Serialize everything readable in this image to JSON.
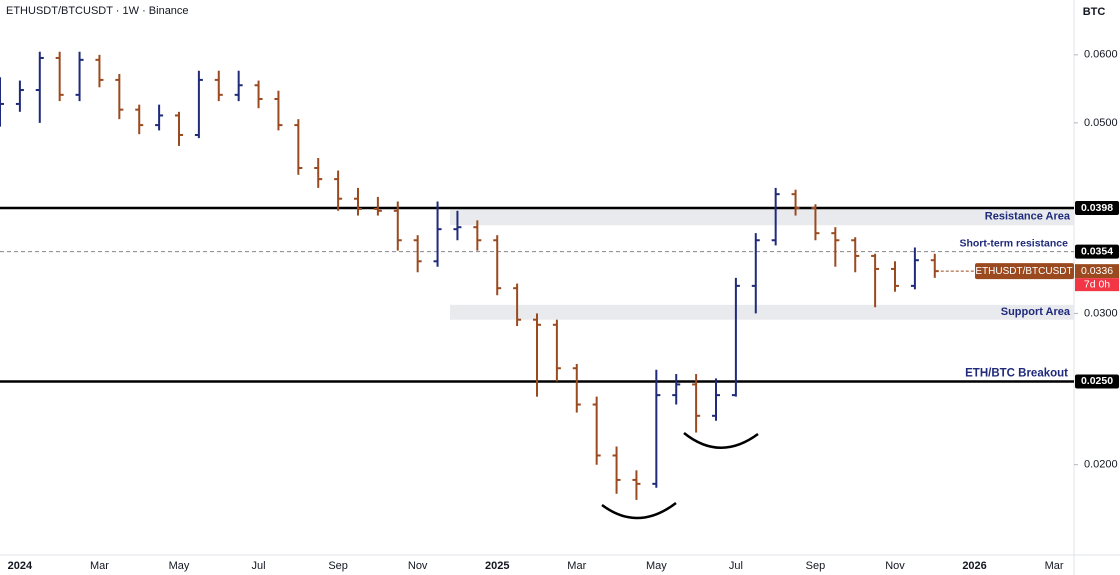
{
  "chart_data": {
    "type": "ohlc",
    "title": "ETHUSDT/BTCUSDT · 1W · Binance",
    "y_unit": "BTC",
    "log_scale": true,
    "up_color": "#1f2a7a",
    "down_color": "#9a4a1e",
    "xlim": [
      -0.5,
      26.5
    ],
    "xticks": [
      {
        "value": 0,
        "label": "2024"
      },
      {
        "value": 2,
        "label": "Mar"
      },
      {
        "value": 4,
        "label": "May"
      },
      {
        "value": 6,
        "label": "Jul"
      },
      {
        "value": 8,
        "label": "Sep"
      },
      {
        "value": 10,
        "label": "Nov"
      },
      {
        "value": 12,
        "label": "2025"
      },
      {
        "value": 14,
        "label": "Mar"
      },
      {
        "value": 16,
        "label": "May"
      },
      {
        "value": 18,
        "label": "Jul"
      },
      {
        "value": 20,
        "label": "Sep"
      },
      {
        "value": 22,
        "label": "Nov"
      },
      {
        "value": 24,
        "label": "2026"
      },
      {
        "value": 26,
        "label": "Mar"
      }
    ],
    "ylim": [
      0.0157,
      0.0695
    ],
    "yticks": [
      {
        "value": 0.06,
        "label": "0.0600"
      },
      {
        "value": 0.05,
        "label": "0.0500"
      },
      {
        "value": 0.03,
        "label": "0.0300"
      },
      {
        "value": 0.02,
        "label": "0.0200"
      }
    ],
    "series": [
      {
        "x": [
          -0.5,
          0,
          0.5,
          1,
          1.5,
          2,
          2.5,
          3,
          3.5,
          4,
          4.5,
          5,
          5.5,
          6,
          6.5,
          7,
          7.5,
          8,
          8.5,
          9,
          9.5,
          10,
          10.5,
          11,
          11.5,
          12,
          12.5,
          13,
          13.5,
          14,
          14.5,
          15,
          15.5,
          16,
          16.5,
          17,
          17.5,
          18,
          18.5,
          19,
          19.5,
          20,
          20.5,
          21,
          21.5,
          22,
          22.5,
          23
        ],
        "open": [
          0.051,
          0.0526,
          0.0546,
          0.0595,
          0.0539,
          0.0592,
          0.0561,
          0.0518,
          0.0497,
          0.051,
          0.0484,
          0.0561,
          0.0539,
          0.0553,
          0.0533,
          0.0497,
          0.0443,
          0.043,
          0.0408,
          0.0397,
          0.0395,
          0.0365,
          0.0345,
          0.0376,
          0.0378,
          0.0365,
          0.0321,
          0.0295,
          0.0291,
          0.0259,
          0.0235,
          0.0205,
          0.0192,
          0.019,
          0.0241,
          0.0248,
          0.0228,
          0.0241,
          0.0323,
          0.0365,
          0.0413,
          0.0398,
          0.0372,
          0.0365,
          0.035,
          0.0338,
          0.0323,
          0.0346
        ],
        "high": [
          0.0565,
          0.056,
          0.0605,
          0.0605,
          0.0605,
          0.06,
          0.057,
          0.0525,
          0.0525,
          0.0515,
          0.0575,
          0.0575,
          0.0575,
          0.056,
          0.0545,
          0.0505,
          0.0455,
          0.044,
          0.042,
          0.041,
          0.0405,
          0.037,
          0.0405,
          0.0395,
          0.0385,
          0.037,
          0.0325,
          0.03,
          0.0295,
          0.0262,
          0.024,
          0.021,
          0.0197,
          0.0258,
          0.0255,
          0.0255,
          0.0252,
          0.033,
          0.0372,
          0.042,
          0.0418,
          0.0402,
          0.0378,
          0.0368,
          0.0352,
          0.0345,
          0.0358,
          0.0352
        ],
        "low": [
          0.0495,
          0.0515,
          0.05,
          0.053,
          0.053,
          0.055,
          0.0505,
          0.0485,
          0.049,
          0.047,
          0.048,
          0.053,
          0.053,
          0.052,
          0.049,
          0.0435,
          0.042,
          0.0395,
          0.039,
          0.039,
          0.0355,
          0.0335,
          0.034,
          0.0365,
          0.0355,
          0.0315,
          0.029,
          0.024,
          0.025,
          0.023,
          0.02,
          0.0185,
          0.0182,
          0.0188,
          0.0235,
          0.0218,
          0.0225,
          0.024,
          0.03,
          0.036,
          0.039,
          0.0365,
          0.034,
          0.0335,
          0.0305,
          0.0318,
          0.032,
          0.033
        ],
        "close": [
          0.0526,
          0.0546,
          0.0595,
          0.0539,
          0.0592,
          0.0561,
          0.0518,
          0.0497,
          0.051,
          0.0484,
          0.0561,
          0.0539,
          0.0553,
          0.0533,
          0.0497,
          0.0443,
          0.043,
          0.0408,
          0.0397,
          0.0395,
          0.0365,
          0.0345,
          0.0376,
          0.0378,
          0.0365,
          0.0321,
          0.0295,
          0.0291,
          0.0259,
          0.0235,
          0.0205,
          0.0192,
          0.019,
          0.0241,
          0.0248,
          0.0228,
          0.0241,
          0.0323,
          0.0365,
          0.0413,
          0.0398,
          0.0372,
          0.0365,
          0.035,
          0.0338,
          0.0323,
          0.0346,
          0.0336
        ]
      }
    ],
    "zones": [
      {
        "range": [
          0.038,
          0.0398
        ],
        "label": "Resistance Area"
      },
      {
        "range": [
          0.0295,
          0.0307
        ],
        "label": "Support Area"
      }
    ],
    "levels": [
      {
        "value": 0.0398,
        "style": "solid"
      },
      {
        "value": 0.0354,
        "style": "dashed",
        "label": "Short-term resistance"
      },
      {
        "value": 0.025,
        "value_label": "0.0250",
        "style": "solid",
        "label": "ETH/BTC Breakout"
      }
    ],
    "last_price": {
      "value": 0.0336,
      "label": "ETHUSDT/BTCUSDT",
      "countdown": "7d 0h",
      "color": "#9a4a1e",
      "countdown_color": "#f23645"
    }
  }
}
